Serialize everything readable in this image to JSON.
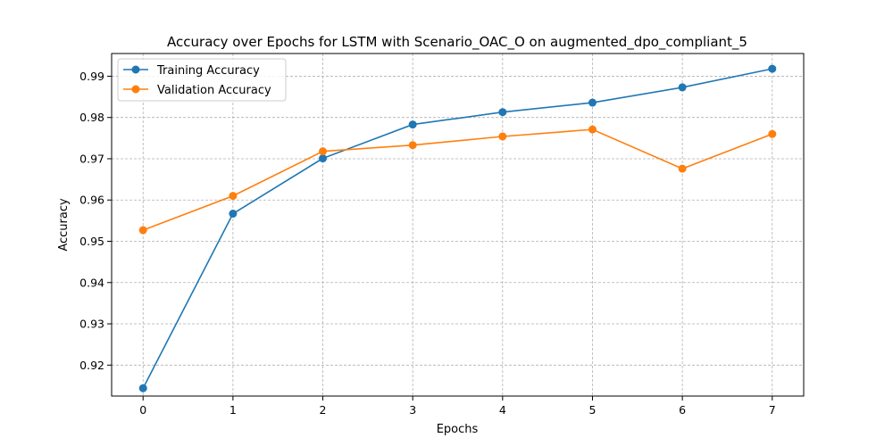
{
  "chart_data": {
    "type": "line",
    "title": "Accuracy over Epochs for LSTM with Scenario_OAC_O on augmented_dpo_compliant_5",
    "xlabel": "Epochs",
    "ylabel": "Accuracy",
    "x": [
      0,
      1,
      2,
      3,
      4,
      5,
      6,
      7
    ],
    "xticks": [
      "0",
      "1",
      "2",
      "3",
      "4",
      "5",
      "6",
      "7"
    ],
    "yticks": [
      "0.92",
      "0.93",
      "0.94",
      "0.95",
      "0.96",
      "0.97",
      "0.98",
      "0.99"
    ],
    "xlim": [
      -0.35,
      7.35
    ],
    "ylim": [
      0.9125,
      0.9955
    ],
    "grid": true,
    "legend_position": "top-left",
    "series": [
      {
        "name": "Training Accuracy",
        "color": "#1f77b4",
        "values": [
          0.9144,
          0.9567,
          0.9701,
          0.9783,
          0.9813,
          0.9836,
          0.9873,
          0.9918
        ]
      },
      {
        "name": "Validation Accuracy",
        "color": "#ff7f0e",
        "values": [
          0.9527,
          0.961,
          0.9718,
          0.9733,
          0.9754,
          0.9771,
          0.9676,
          0.976
        ]
      }
    ]
  }
}
